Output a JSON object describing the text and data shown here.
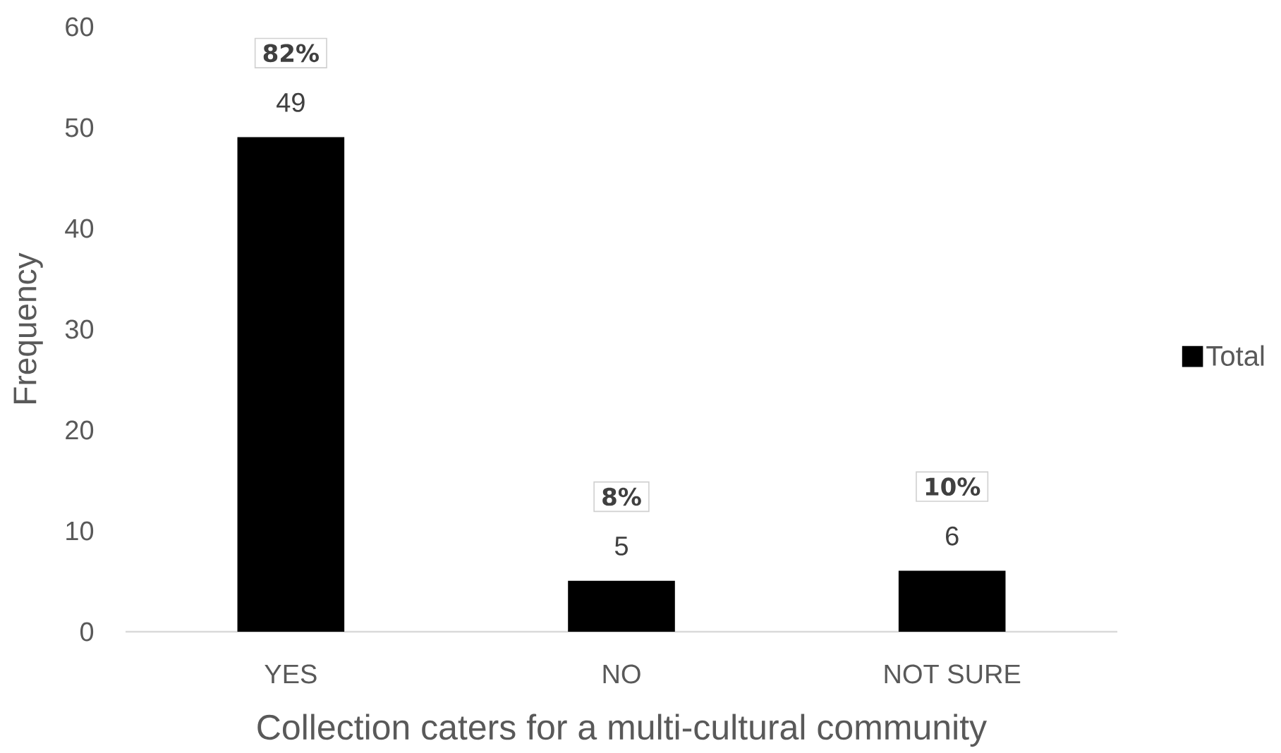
{
  "chart_data": {
    "type": "bar",
    "xlabel": "Collection caters for a multi-cultural community",
    "ylabel": "Frequency",
    "categories": [
      "YES",
      "NO",
      "NOT SURE"
    ],
    "series": [
      {
        "name": "Total",
        "color": "#000000",
        "values": [
          49,
          5,
          6
        ]
      }
    ],
    "ylim": [
      0,
      60
    ],
    "yticks": [
      0,
      10,
      20,
      30,
      40,
      50,
      60
    ],
    "data_labels": true,
    "legend": "right",
    "annotations": [
      "82%",
      "8%",
      "10%"
    ]
  }
}
